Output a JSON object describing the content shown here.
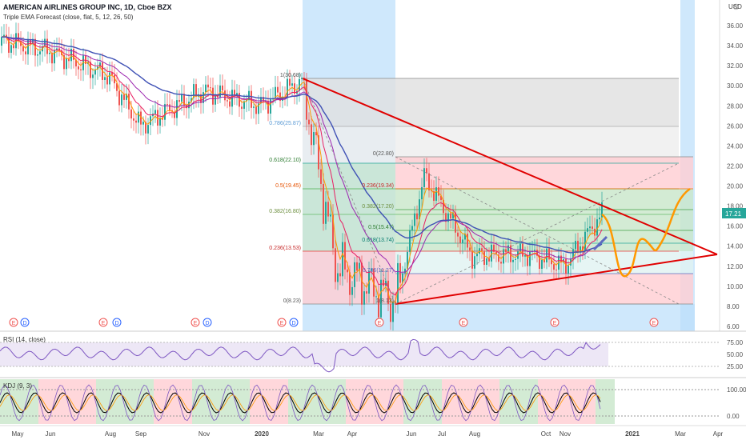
{
  "header": {
    "symbol": "AMERICAN AIRLINES GROUP INC, 1D, Cboe BZX",
    "indicator": "Triple EMA Forecast (close, flat, 5, 12, 26, 50)",
    "currency": "USD",
    "settings_icon": "gear-icon"
  },
  "colors": {
    "accent": "#2962ff",
    "up": "#26a69a",
    "down": "#ef5350",
    "triangle": "#e00000",
    "forecast": "#ff9800",
    "rsi": "#7e57c2",
    "kdj": "#000000"
  },
  "price_axis": {
    "ticks": [
      "36.00",
      "34.00",
      "32.00",
      "30.00",
      "28.00",
      "26.00",
      "24.00",
      "22.00",
      "20.00",
      "18.00",
      "16.00",
      "14.00",
      "12.00",
      "10.00",
      "8.00",
      "6.00"
    ],
    "last_price": "17.21"
  },
  "time_axis": {
    "labels": [
      "May",
      "Jun",
      "Aug",
      "Sep",
      "Nov",
      "2020",
      "Mar",
      "Apr",
      "Jun",
      "Jul",
      "Aug",
      "Oct",
      "Nov",
      "2021",
      "Mar",
      "Apr"
    ]
  },
  "fib_left": {
    "levels": [
      "1(30.68)",
      "0.786(25.87)",
      "0.618(22.10)",
      "0.5(19.45)",
      "0.382(16.80)",
      "0.236(13.53)",
      "0(8.23)"
    ]
  },
  "fib_right": {
    "levels": [
      "0(22.80)",
      "0.236(19.34)",
      "0.382(17.20)",
      "0.5(15.47)",
      "0.618(13.74)",
      "0.786(11.27)",
      "1(8.13)"
    ]
  },
  "events": {
    "labels": [
      "E",
      "D",
      "E",
      "D",
      "E",
      "D",
      "E",
      "D",
      "E",
      "E",
      "E",
      "E"
    ]
  },
  "rsi": {
    "label": "RSI (14, close)",
    "ticks": [
      "75.00",
      "50.00",
      "25.00"
    ]
  },
  "kdj": {
    "label": "KDJ (9, 3)",
    "ticks": [
      "100.00",
      "0.00"
    ]
  },
  "chart_data": {
    "type": "line",
    "title": "AMERICAN AIRLINES GROUP INC, 1D, Cboe BZX",
    "ylabel": "USD",
    "ylim": [
      6,
      37
    ],
    "x": [
      "May",
      "Jun",
      "Aug",
      "Sep",
      "Nov",
      "2020",
      "Mar",
      "Apr",
      "Jun",
      "Jul",
      "Aug",
      "Oct",
      "Nov",
      "2021",
      "Mar",
      "Apr"
    ],
    "series": [
      {
        "values": [
          34.5,
          33.5,
          31.0,
          28.5,
          27.5,
          29.0,
          23.0,
          11.5,
          9.5,
          12.0,
          13.0,
          13.2,
          12.5,
          17.2,
          null,
          null
        ]
      }
    ],
    "triangle_apex": 13.0,
    "forecast_end": 19.6
  }
}
